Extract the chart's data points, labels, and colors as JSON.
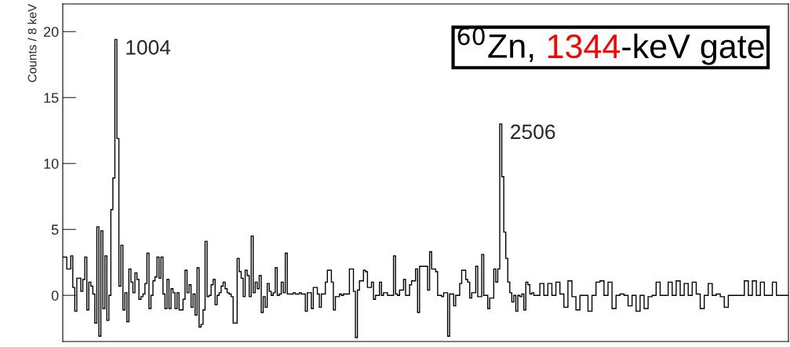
{
  "chart_data": {
    "type": "step",
    "ylabel": "Counts / 8 keV",
    "color": "#000000",
    "tick_labels": "y",
    "ylim": [
      -3.5,
      22.1
    ],
    "yticks": [
      0,
      5,
      10,
      15,
      20
    ],
    "annotations": [
      "$^{60}$Zn, ",
      "1344",
      "-keV gate",
      "1004",
      "2506"
    ],
    "categories": [
      null,
      null,
      null,
      null,
      null,
      null,
      null,
      null,
      null,
      null,
      null,
      null,
      null,
      null,
      null,
      null,
      null,
      null,
      null,
      null,
      null,
      null,
      null,
      null,
      null,
      null,
      null,
      null,
      null,
      null,
      null,
      null,
      null,
      null,
      null,
      null,
      null,
      null,
      null,
      null,
      null,
      null,
      null,
      null,
      null,
      null,
      null,
      null,
      null,
      null,
      null,
      null,
      null,
      null,
      null,
      null,
      null,
      null,
      null,
      null,
      null,
      null,
      null,
      null,
      null,
      null,
      null,
      null,
      null,
      null,
      null,
      null,
      null,
      null,
      null,
      null,
      null,
      null,
      null,
      null,
      null,
      null,
      null,
      null,
      null,
      null,
      null,
      null,
      null,
      null,
      null,
      null,
      null,
      null,
      null,
      null,
      null,
      null,
      null,
      null,
      null,
      null,
      null,
      null,
      null,
      null,
      null,
      null,
      null,
      null,
      null,
      null,
      null,
      null,
      null,
      null,
      null,
      null,
      null,
      null,
      null,
      null,
      null,
      null,
      null,
      null,
      null,
      null,
      null,
      null,
      null,
      null,
      null,
      null,
      null,
      null,
      null,
      null,
      null,
      null,
      null,
      null,
      null,
      null,
      null,
      null,
      null,
      null,
      null,
      null,
      null,
      null,
      null,
      null,
      null,
      null,
      null,
      null,
      null,
      null,
      null,
      null,
      null,
      null,
      null,
      null,
      null,
      null,
      null,
      null,
      null,
      null,
      null,
      null,
      null,
      null,
      null,
      null,
      null,
      null,
      null,
      null,
      null,
      null,
      null,
      null,
      null,
      null,
      null,
      null,
      null,
      null,
      null,
      null,
      null,
      null,
      null,
      null,
      null,
      null,
      null,
      null,
      null,
      null,
      null,
      null,
      null,
      null,
      null,
      null,
      null,
      null,
      null,
      null,
      null,
      null,
      null,
      null,
      null,
      null,
      null,
      null,
      null,
      null,
      null,
      null,
      null,
      null,
      null,
      null,
      null,
      null,
      null,
      null,
      null,
      null,
      null,
      null,
      null,
      null,
      null,
      null,
      null,
      null,
      null,
      null,
      null,
      null,
      null,
      null,
      null,
      null,
      null,
      null,
      null,
      null,
      null,
      null,
      null,
      null,
      null,
      null,
      null,
      null,
      null,
      null,
      null,
      null,
      null,
      null,
      null,
      null,
      null,
      null,
      null,
      null,
      null,
      null,
      null,
      null,
      null,
      null,
      null,
      null,
      null,
      null,
      null,
      null,
      null,
      null,
      null,
      null,
      null,
      null,
      null,
      null,
      null,
      null,
      null,
      null,
      null,
      null,
      null,
      null,
      null,
      null,
      null,
      null,
      null,
      null,
      null,
      null,
      null,
      null,
      null,
      null,
      null,
      null,
      null,
      null,
      null,
      null,
      null,
      null,
      null,
      null,
      null,
      null,
      null,
      null,
      null,
      null,
      null,
      null,
      null,
      null,
      null,
      null,
      null,
      null,
      null,
      null,
      null,
      null,
      null,
      null,
      null,
      null,
      null,
      null,
      null,
      null,
      null,
      null,
      null,
      null,
      null,
      null,
      null,
      null,
      null,
      null
    ],
    "values": [
      2.9,
      2.9,
      2.0,
      2.0,
      3.0,
      0.6,
      -1.2,
      1.3,
      1.3,
      0.3,
      1.2,
      2.9,
      -1.1,
      1.0,
      0.7,
      0.1,
      -2.1,
      5.2,
      -3.1,
      4.9,
      -1.0,
      3.0,
      -1.9,
      0.0,
      6.5,
      8.9,
      19.4,
      11.9,
      0.7,
      3.8,
      -1.1,
      0.2,
      -2.0,
      2.0,
      1.0,
      0.2,
      1.7,
      1.2,
      -0.3,
      -0.1,
      0.1,
      0.9,
      3.2,
      -1.0,
      0.0,
      1.1,
      1.4,
      2.9,
      1.3,
      2.9,
      0.1,
      -1.0,
      1.2,
      -1.0,
      0.5,
      0.2,
      -1.0,
      0.2,
      -1.1,
      -1.1,
      -0.3,
      1.9,
      0.2,
      0.8,
      -0.9,
      0.1,
      -1.5,
      2.1,
      -2.4,
      -2.2,
      -1.1,
      4.1,
      -0.1,
      0,
      0.8,
      1.2,
      -0.7,
      0,
      0.2,
      0.7,
      1.0,
      0.5,
      0.2,
      0.1,
      -0.1,
      -2.1,
      -2.1,
      2.8,
      1.8,
      1.3,
      -0.1,
      1.9,
      1.5,
      -0.1,
      4.5,
      0.2,
      1.0,
      0.5,
      1.5,
      -1.3,
      -0.1,
      -0.9,
      0.9,
      0.3,
      0,
      0.2,
      2.1,
      0,
      0.1,
      1.0,
      0.2,
      3.2,
      0.1,
      0.1,
      0.1,
      0.2,
      0.1,
      0.1,
      0.2,
      0.1,
      0.1,
      -1.2,
      0.2,
      0.2,
      -1.0,
      0.6,
      0.6,
      0.1,
      -0.9,
      0.1,
      0.1,
      1.0,
      1.9,
      1.9,
      1.0,
      -1.1,
      -0.1,
      -0.1,
      0.1,
      0,
      0.1,
      0.1,
      0.1,
      2.0,
      2.0,
      0.3,
      -3.2,
      0.4,
      1.1,
      1.1,
      1.9,
      1.8,
      0.6,
      0.6,
      1.0,
      -0.3,
      0,
      0,
      1.0,
      0,
      0.2,
      0.2,
      0,
      0,
      0,
      3.0,
      0.1,
      0,
      0.4,
      0.4,
      1.2,
      0,
      0,
      0.8,
      1.1,
      1.1,
      2.0,
      -1.3,
      2.2,
      2.2,
      2.2,
      2.2,
      0.4,
      3.3,
      2.0,
      2.0,
      1.8,
      0,
      0,
      -0.1,
      0.2,
      0.2,
      -3.1,
      0.1,
      0.1,
      -0.8,
      0,
      0,
      0.9,
      1.9,
      1.9,
      1.2,
      1.0,
      -0.2,
      0.2,
      0.2,
      2.2,
      -0.1,
      -0.1,
      3.1,
      0,
      0,
      -1.0,
      -0.2,
      -0.2,
      2.0,
      1.0,
      2.0,
      13.0,
      9.0,
      4.8,
      2.8,
      1.0,
      0.2,
      -0.5,
      0,
      -1.2,
      0,
      -0.1,
      0.1,
      -1.1,
      1.0,
      0.8,
      0.1,
      0.2,
      0,
      0,
      0,
      0.9,
      0.9,
      0,
      0,
      0.9,
      0.9,
      0,
      0,
      1.0,
      1.0,
      0.1,
      0.1,
      -0.9,
      -0.9,
      1.1,
      1.1,
      -0.1,
      -0.1,
      -1.1,
      -1.1,
      0,
      0,
      0,
      0,
      -1.2,
      -1.2,
      0,
      0,
      1.0,
      1.0,
      1.1,
      1.1,
      0,
      0,
      1.0,
      1.0,
      -1.0,
      -1.0,
      0,
      0,
      0.1,
      0.1,
      0,
      0,
      -0.8,
      -0.8,
      0,
      0,
      -1.2,
      -1.2,
      0,
      0,
      -1.0,
      -1.0,
      -0.1,
      -0.1,
      0,
      0,
      1.0,
      1.0,
      0,
      0,
      0,
      0,
      1.0,
      1.0,
      0,
      0,
      1.1,
      1.1,
      0,
      0,
      0.9,
      0.9,
      0,
      0,
      1.0,
      1.0,
      0.1,
      0.1,
      -1.0,
      -1.0,
      0,
      0,
      0.9,
      0.9,
      0,
      0,
      0.1,
      0.1,
      -0.1,
      -0.1,
      -0.9,
      -0.9,
      0,
      0,
      0,
      0,
      0,
      0,
      0,
      0,
      1.1,
      1.1,
      0,
      0,
      1.1,
      1.1,
      0,
      0,
      1.0,
      1.0,
      0,
      0,
      0,
      0,
      1.0,
      1.0,
      0,
      0,
      0,
      0,
      0,
      0
    ]
  }
}
